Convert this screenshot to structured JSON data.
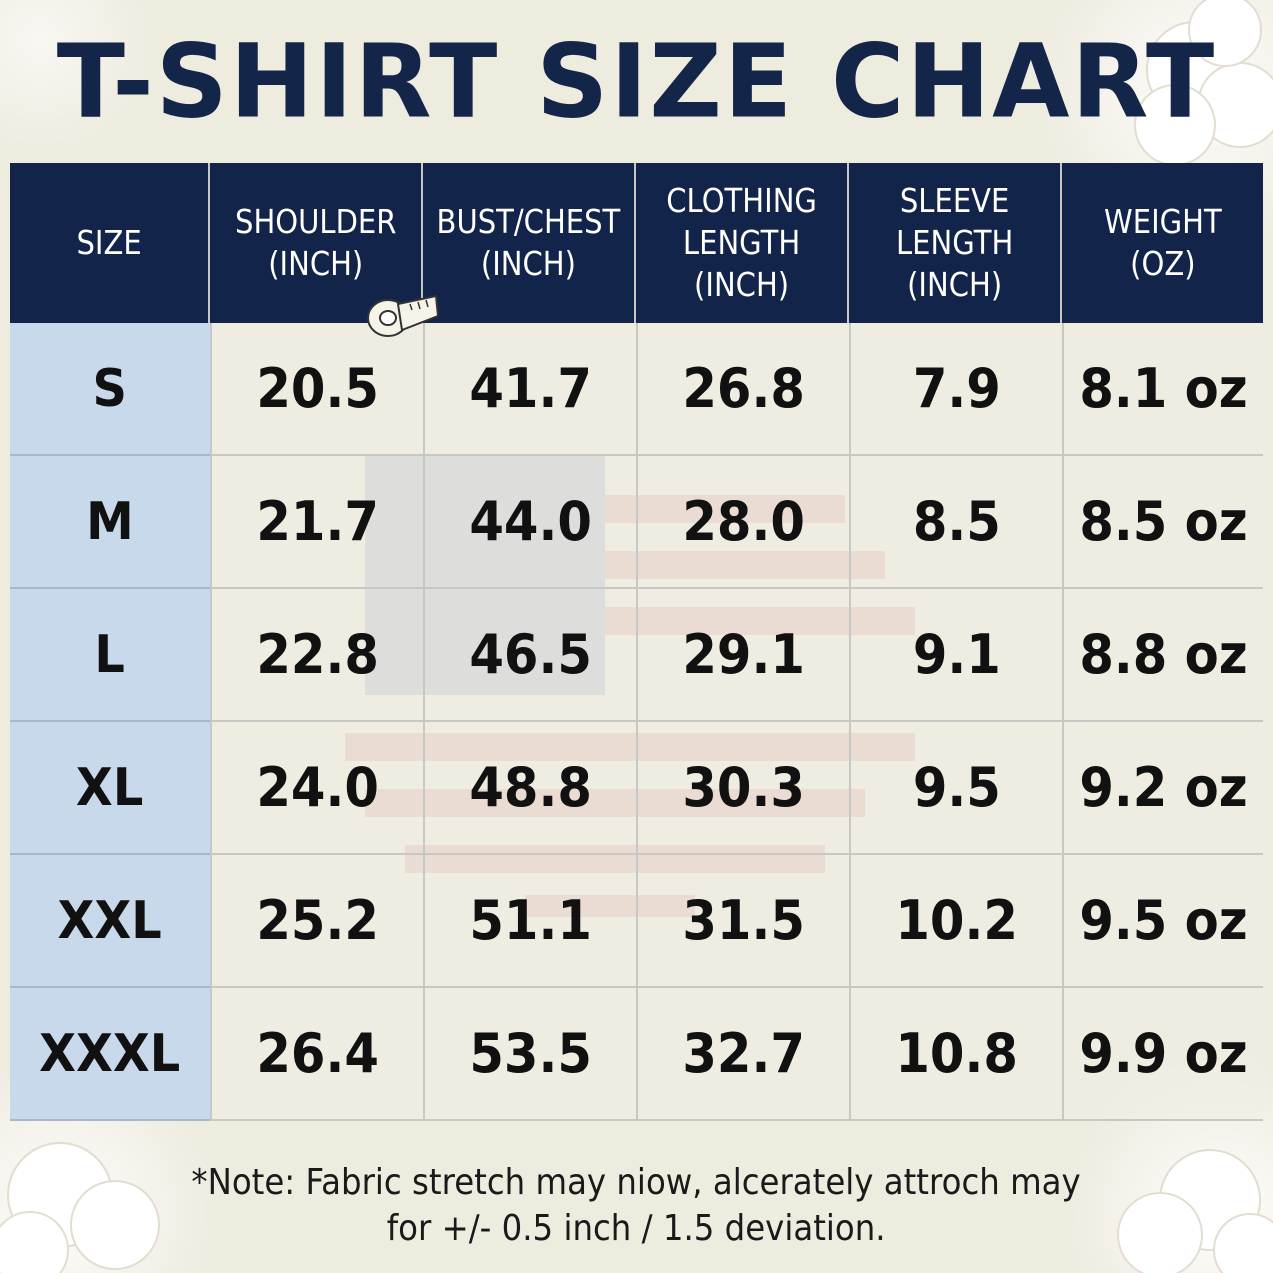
{
  "title": "T-SHIRT SIZE CHART",
  "colors": {
    "header_bg": "#13244b",
    "size_column_bg": "#c8d9ec",
    "title_text": "#14254a",
    "page_bg": "#eeebdf"
  },
  "table": {
    "headers": [
      "SIZE",
      "SHOULDER\n(INCH)",
      "BUST/CHEST\n(INCH)",
      "CLOTHING\nLENGTH\n(INCH)",
      "SLEEVE\nLENGTH\n(INCH)",
      "WEIGHT\n(OZ)"
    ],
    "rows": [
      [
        "S",
        "20.5",
        "41.7",
        "26.8",
        "7.9",
        "8.1 oz"
      ],
      [
        "M",
        "21.7",
        "44.0",
        "28.0",
        "8.5",
        "8.5 oz"
      ],
      [
        "L",
        "22.8",
        "46.5",
        "29.1",
        "9.1",
        "8.8 oz"
      ],
      [
        "XL",
        "24.0",
        "48.8",
        "30.3",
        "9.5",
        "9.2 oz"
      ],
      [
        "XXL",
        "25.2",
        "51.1",
        "31.5",
        "10.2",
        "9.5 oz"
      ],
      [
        "XXXL",
        "26.4",
        "53.5",
        "32.7",
        "10.8",
        "9.9 oz"
      ]
    ]
  },
  "note": {
    "line1": "*Note: Fabric stretch may niow, alcerately attroch may",
    "line2": "for +/- 0.5 inch / 1.5 deviation."
  },
  "icons": [
    "cotton-flower-icon",
    "measuring-tape-icon",
    "american-flag-watermark-icon"
  ]
}
